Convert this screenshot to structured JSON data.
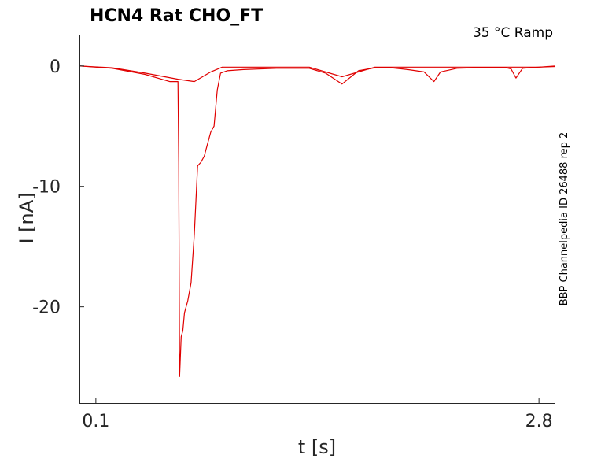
{
  "chart_data": {
    "type": "line",
    "title": "HCN4  Rat  CHO_FT",
    "condition": "35 °C  Ramp",
    "xlabel": "t [s]",
    "ylabel": "I [nA]",
    "side_note": "BBP Channelpedia ID 26488 rep 2",
    "xticks": [
      0.1,
      2.8
    ],
    "xtick_labels": [
      "0.1",
      "2.8"
    ],
    "yticks": [
      0,
      -10,
      -20
    ],
    "ytick_labels": [
      "0",
      "-10",
      "-20"
    ],
    "xlim": [
      0.0,
      2.9
    ],
    "ylim": [
      -28,
      2.6
    ],
    "grid": false,
    "legend": "none",
    "color": "#e00000",
    "series": [
      {
        "x": [
          0.0,
          0.2,
          0.4,
          0.6,
          0.7,
          0.8,
          0.87,
          0.9,
          1.05,
          1.2,
          1.4,
          1.6,
          1.8,
          1.93,
          2.0,
          2.1,
          2.3,
          2.5,
          2.63,
          2.7,
          2.8,
          2.9
        ],
        "y": [
          0.0,
          -0.15,
          -0.6,
          -1.1,
          -1.3,
          -0.5,
          -0.1,
          -0.1,
          -0.1,
          -0.1,
          -0.1,
          -0.9,
          -0.1,
          -0.1,
          -0.1,
          -0.1,
          -0.1,
          -0.1,
          -0.1,
          -0.1,
          -0.1,
          0.0
        ]
      },
      {
        "x": [
          0.0,
          0.2,
          0.4,
          0.5,
          0.55,
          0.6,
          0.605,
          0.61,
          0.62,
          0.63,
          0.64,
          0.66,
          0.68,
          0.7,
          0.72,
          0.74,
          0.76,
          0.78,
          0.8,
          0.82,
          0.84,
          0.86,
          0.88,
          0.9,
          1.0,
          1.2,
          1.4,
          1.5,
          1.6,
          1.7,
          1.8,
          1.9,
          2.0,
          2.1,
          2.16,
          2.2,
          2.3,
          2.4,
          2.6,
          2.63,
          2.66,
          2.7,
          2.8,
          2.9
        ],
        "y": [
          0.0,
          -0.2,
          -0.7,
          -1.1,
          -1.3,
          -1.3,
          -8.0,
          -25.8,
          -22.5,
          -22.0,
          -20.5,
          -19.5,
          -18.0,
          -14.0,
          -8.3,
          -8.0,
          -7.5,
          -6.5,
          -5.5,
          -5.0,
          -2.0,
          -0.6,
          -0.5,
          -0.4,
          -0.3,
          -0.2,
          -0.2,
          -0.6,
          -1.5,
          -0.4,
          -0.15,
          -0.15,
          -0.3,
          -0.5,
          -1.3,
          -0.5,
          -0.2,
          -0.15,
          -0.15,
          -0.25,
          -1.0,
          -0.2,
          -0.1,
          -0.05
        ]
      }
    ]
  }
}
